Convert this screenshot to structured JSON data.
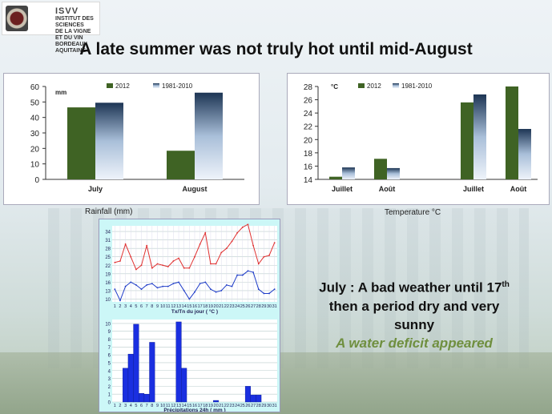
{
  "logo": {
    "name": "ISVV",
    "line1": "INSTITUT DES SCIENCES",
    "line2": "DE LA VIGNE ET DU VIN",
    "line3": "BORDEAUX AQUITAINE"
  },
  "slide_title": "A late summer was not truly hot until mid-August",
  "note": {
    "line1_pre": "July : A bad weather until 17",
    "line1_sup": "th",
    "line2": "then a period dry and very",
    "line3": "sunny",
    "line4": "A water deficit appeared"
  },
  "colors": {
    "series_2012": "#3f6324",
    "series_normal": "#bcd0e6",
    "weather_max": "#e03030",
    "weather_min": "#1e3cc8",
    "weather_rain": "#1a2fe0"
  },
  "chart_data": [
    {
      "type": "bar",
      "caption": "Rainfall (mm)",
      "unit_label": "mm",
      "categories": [
        "July",
        "August"
      ],
      "series": [
        {
          "name": "2012",
          "values": [
            46.5,
            18.5
          ]
        },
        {
          "name": "1981-2010",
          "values": [
            49.5,
            56
          ]
        }
      ],
      "ylim": [
        0,
        60
      ],
      "yticks": [
        0,
        10,
        20,
        30,
        40,
        50,
        60
      ],
      "legend": "top-center",
      "grid": false
    },
    {
      "type": "bar",
      "caption": "Temperature °C",
      "unit_label": "°C",
      "categories": [
        "Juillet",
        "Août",
        "Juillet",
        "Août"
      ],
      "series": [
        {
          "name": "2012",
          "values": [
            14.4,
            17.1,
            25.6,
            28
          ]
        },
        {
          "name": "1981-2010",
          "values": [
            15.8,
            15.7,
            26.8,
            21.6
          ]
        }
      ],
      "ylim": [
        14,
        28
      ],
      "yticks": [
        14,
        16,
        18,
        20,
        22,
        24,
        26,
        28
      ],
      "legend": "top-left",
      "grid": false
    },
    {
      "type": "line",
      "xlabel": "Tx/Tn du jour ( °C )",
      "x": [
        1,
        2,
        3,
        4,
        5,
        6,
        7,
        8,
        9,
        10,
        11,
        12,
        13,
        14,
        15,
        16,
        17,
        18,
        19,
        20,
        21,
        22,
        23,
        24,
        25,
        26,
        27,
        28,
        29,
        30,
        31
      ],
      "series": [
        {
          "name": "Tx",
          "values": [
            23,
            23.5,
            29.5,
            25,
            20.5,
            22,
            29,
            21,
            22.5,
            22,
            21.5,
            23.5,
            24.5,
            21,
            21,
            25,
            29.5,
            33.5,
            22.5,
            22.5,
            26.5,
            28,
            30.5,
            33.5,
            35.5,
            36.5,
            29,
            22.5,
            25,
            25.5,
            30
          ]
        },
        {
          "name": "Tn",
          "values": [
            13.5,
            9.5,
            14.5,
            16,
            15,
            13.5,
            15,
            15.5,
            14,
            14.5,
            14.5,
            15.5,
            16,
            13,
            10,
            12.5,
            15.5,
            16,
            13.5,
            12.5,
            13,
            15,
            14.5,
            18.5,
            18.5,
            20,
            19.5,
            13.5,
            12,
            12,
            13.5
          ]
        }
      ],
      "ylim": [
        9,
        36
      ],
      "yticks": [
        10,
        13,
        16,
        19,
        22,
        25,
        28,
        31,
        34
      ],
      "grid": true
    },
    {
      "type": "bar",
      "xlabel": "Précipitations 24h ( mm )",
      "categories": [
        1,
        2,
        3,
        4,
        5,
        6,
        7,
        8,
        9,
        10,
        11,
        12,
        13,
        14,
        15,
        16,
        17,
        18,
        19,
        20,
        21,
        22,
        23,
        24,
        25,
        26,
        27,
        28,
        29,
        30,
        31
      ],
      "values": [
        0,
        0,
        4.3,
        6.1,
        9.9,
        1.1,
        1,
        7.6,
        0,
        0,
        0,
        0,
        10.2,
        4.3,
        0,
        0,
        0,
        0,
        0,
        0.2,
        0,
        0,
        0,
        0,
        0,
        2,
        0.9,
        0.9,
        0,
        0,
        0
      ],
      "ylim": [
        0,
        10.5
      ],
      "yticks": [
        0,
        1,
        2,
        3,
        4,
        5,
        6,
        7,
        8,
        9,
        10
      ],
      "grid": true
    }
  ]
}
